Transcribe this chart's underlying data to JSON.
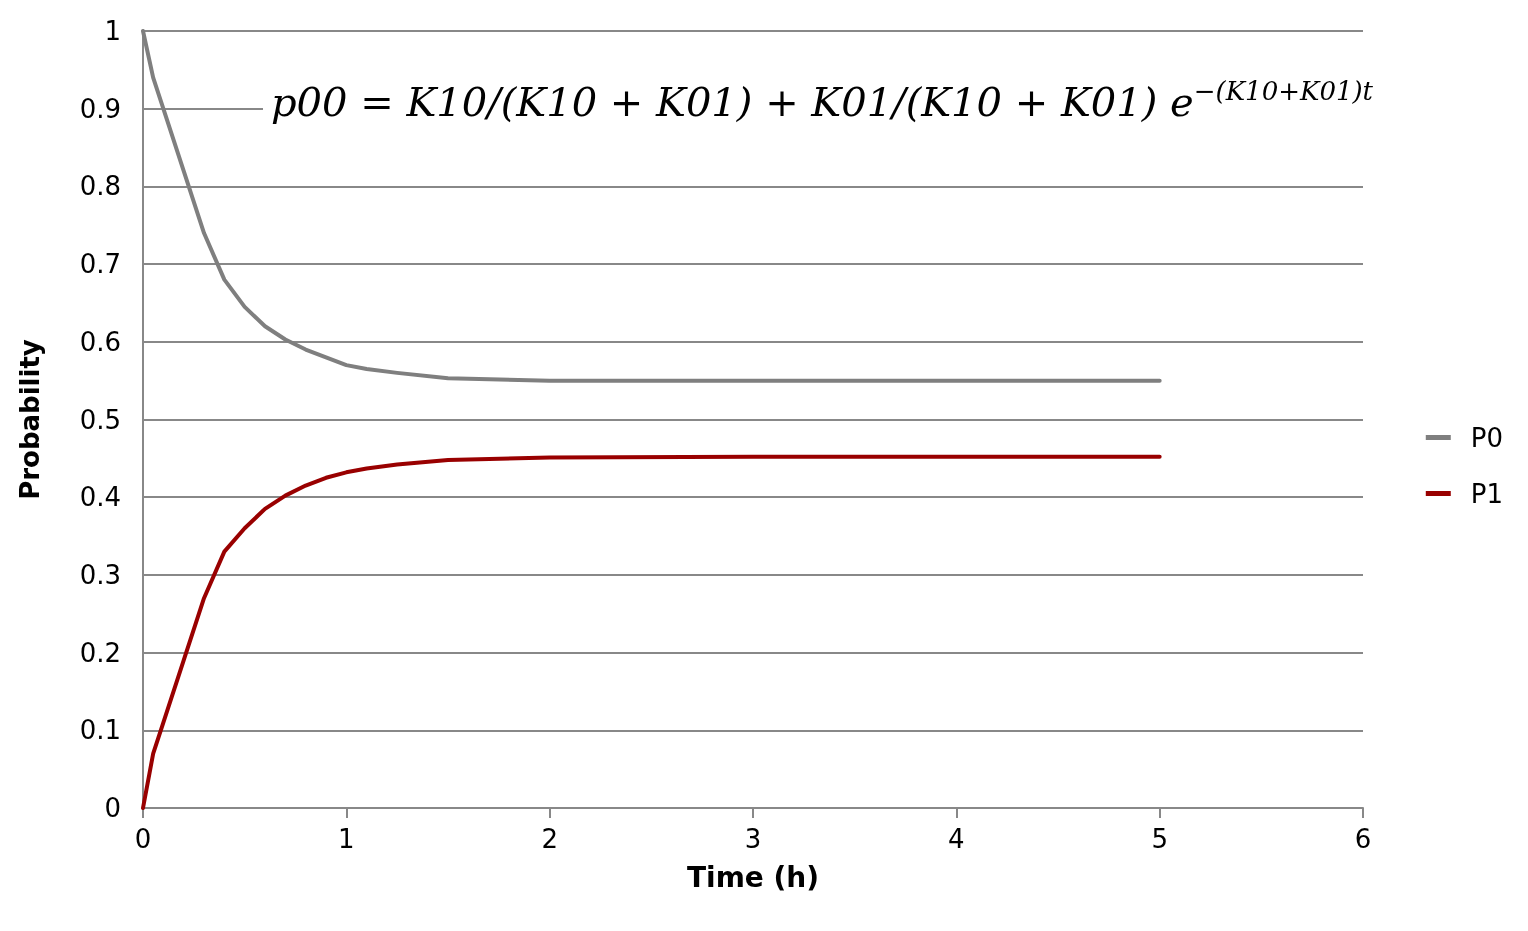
{
  "chart_data": {
    "type": "line",
    "xlabel": "Time (h)",
    "ylabel": "Probability",
    "annotations": [
      "p00 = K10/(K10 + K01) + K01/(K10 + K01) e$^{−(K10+K01)t}$"
    ],
    "series": [
      {
        "name": "P0",
        "color": "#7f7f7f",
        "x": [
          0,
          0.05,
          0.1,
          0.2,
          0.3,
          0.4,
          0.5,
          0.6,
          0.7,
          0.8,
          0.9,
          1,
          1.1,
          1.25,
          1.5,
          2,
          3,
          4,
          5
        ],
        "values": [
          1,
          0.94,
          0.9,
          0.82,
          0.74,
          0.68,
          0.645,
          0.62,
          0.603,
          0.59,
          0.58,
          0.57,
          0.565,
          0.56,
          0.553,
          0.55,
          0.55,
          0.55,
          0.55
        ]
      },
      {
        "name": "P1",
        "color": "#990000",
        "x": [
          0,
          0.05,
          0.1,
          0.2,
          0.3,
          0.4,
          0.5,
          0.6,
          0.7,
          0.8,
          0.9,
          1,
          1.1,
          1.25,
          1.5,
          2,
          3,
          4,
          5
        ],
        "values": [
          0,
          0.07,
          0.11,
          0.19,
          0.27,
          0.33,
          0.36,
          0.385,
          0.402,
          0.415,
          0.425,
          0.432,
          0.437,
          0.442,
          0.448,
          0.451,
          0.452,
          0.452,
          0.452
        ]
      }
    ],
    "xlim": [
      0,
      6
    ],
    "xticks": [
      0,
      1,
      2,
      3,
      4,
      5,
      6
    ],
    "ylim": [
      0,
      1
    ],
    "yticks": [
      0,
      0.1,
      0.2,
      0.3,
      0.4,
      0.5,
      0.6,
      0.7,
      0.8,
      0.9,
      1
    ],
    "grid": "y",
    "legend": "right",
    "marker": "none",
    "line_style": "solid"
  }
}
